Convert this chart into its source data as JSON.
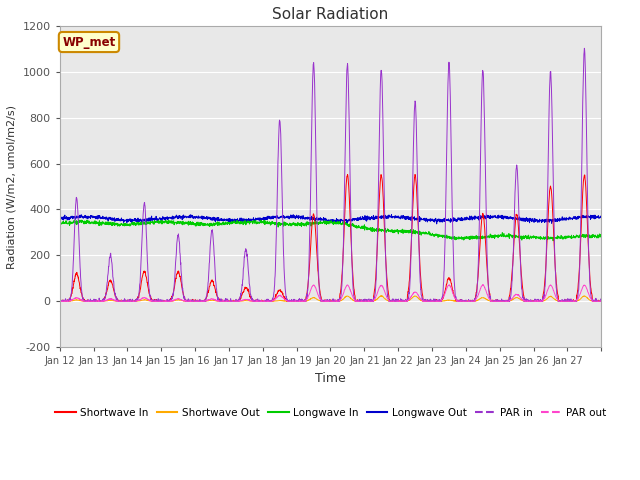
{
  "title": "Solar Radiation",
  "ylabel": "Radiation (W/m2, umol/m2/s)",
  "xlabel": "Time",
  "ylim": [
    -200,
    1200
  ],
  "yticks": [
    -200,
    0,
    200,
    400,
    600,
    800,
    1000,
    1200
  ],
  "annotation_text": "WP_met",
  "annotation_bg": "#ffffcc",
  "annotation_edge": "#cc8800",
  "annotation_text_color": "#880000",
  "figure_bg": "#ffffff",
  "plot_bg": "#e8e8e8",
  "grid_color": "#ffffff",
  "line_colors": {
    "shortwave_in": "#ff0000",
    "shortwave_out": "#ffaa00",
    "longwave_in": "#00cc00",
    "longwave_out": "#0000cc",
    "par_in": "#9933cc",
    "par_out": "#ff44cc"
  },
  "legend_entries": [
    "Shortwave In",
    "Shortwave Out",
    "Longwave In",
    "Longwave Out",
    "PAR in",
    "PAR out"
  ],
  "xticklabels": [
    "Jan 12",
    "Jan 13",
    "Jan 14",
    "Jan 15",
    "Jan 16",
    "Jan 17",
    "Jan 18",
    "Jan 19",
    "Jan 20",
    "Jan 21",
    "Jan 22",
    "Jan 23",
    "Jan 24",
    "Jan 25",
    "Jan 26",
    "Jan 27"
  ],
  "n_days": 16,
  "n_points": 2304,
  "lw_out_base": 360,
  "lw_in_base": 340,
  "sw_day_peaks": [
    120,
    90,
    130,
    130,
    90,
    60,
    50,
    380,
    550,
    550,
    550,
    100,
    380,
    380,
    500,
    550
  ],
  "par_day_peaks": [
    450,
    200,
    430,
    290,
    310,
    230,
    790,
    1040,
    1030,
    1010,
    870,
    1040,
    1010,
    590,
    1000,
    1100
  ],
  "par_out_peaks": [
    15,
    10,
    15,
    10,
    10,
    8,
    25,
    70,
    70,
    70,
    40,
    70,
    70,
    30,
    70,
    70
  ]
}
